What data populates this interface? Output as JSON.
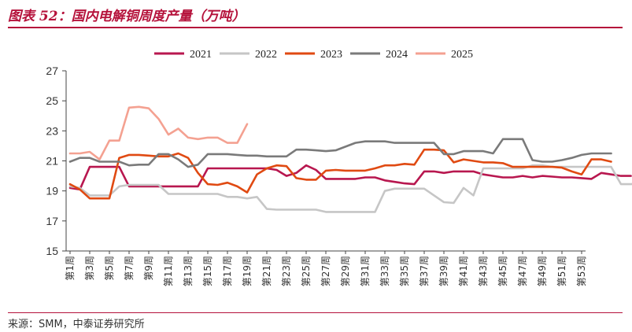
{
  "title": "图表 52：国内电解铜周度产量（万吨）",
  "source": "来源：SMM，中泰证券研究所",
  "chart_data": {
    "type": "line",
    "title": "图表 52：国内电解铜周度产量（万吨）",
    "xlabel": "",
    "ylabel": "",
    "ylim": [
      15,
      27
    ],
    "yticks": [
      15,
      17,
      19,
      21,
      23,
      25,
      27
    ],
    "xtick_labels": [
      "第1周",
      "第3周",
      "第5周",
      "第7周",
      "第9周",
      "第11周",
      "第13周",
      "第15周",
      "第17周",
      "第19周",
      "第21周",
      "第23周",
      "第25周",
      "第27周",
      "第29周",
      "第31周",
      "第33周",
      "第35周",
      "第37周",
      "第39周",
      "第41周",
      "第43周",
      "第45周",
      "第47周",
      "第49周",
      "第51周",
      "第53周"
    ],
    "grid": false,
    "legend_position": "top",
    "series": [
      {
        "name": "2021",
        "color": "#b8174f",
        "weeks_start": 1,
        "values": [
          19.2,
          19.1,
          20.6,
          20.6,
          20.6,
          20.6,
          19.3,
          19.3,
          19.3,
          19.3,
          19.3,
          19.3,
          19.3,
          19.3,
          20.5,
          20.5,
          20.5,
          20.5,
          20.5,
          20.5,
          20.5,
          20.4,
          20.0,
          20.2,
          20.7,
          20.4,
          19.8,
          19.8,
          19.8,
          19.8,
          19.9,
          19.9,
          19.7,
          19.6,
          19.5,
          19.45,
          20.3,
          20.3,
          20.2,
          20.3,
          20.3,
          20.3,
          20.1,
          20.0,
          19.9,
          19.9,
          20.0,
          19.9,
          20.0,
          19.95,
          19.9,
          19.9,
          19.85,
          19.8,
          20.2,
          20.1,
          20.0,
          20.0
        ]
      },
      {
        "name": "2022",
        "color": "#c6c6c6",
        "weeks_start": 1,
        "values": [
          19.3,
          19.2,
          18.7,
          18.7,
          18.7,
          19.3,
          19.4,
          19.4,
          19.4,
          19.4,
          18.8,
          18.8,
          18.8,
          18.8,
          18.8,
          18.8,
          18.6,
          18.6,
          18.5,
          18.6,
          17.8,
          17.75,
          17.75,
          17.75,
          17.75,
          17.75,
          17.6,
          17.6,
          17.6,
          17.6,
          17.6,
          17.6,
          19.0,
          19.15,
          19.15,
          19.15,
          19.15,
          18.7,
          18.25,
          18.2,
          19.2,
          18.7,
          20.5,
          20.5,
          20.5,
          20.5,
          20.5,
          20.7,
          20.7,
          20.6,
          20.6,
          20.6,
          20.6,
          20.6,
          20.6,
          20.6,
          19.45,
          19.45,
          19.5,
          19.6,
          19.85,
          19.0,
          19.35,
          19.35
        ]
      },
      {
        "name": "2023",
        "color": "#e04a12",
        "weeks_start": 1,
        "values": [
          19.45,
          19.1,
          18.5,
          18.5,
          18.5,
          21.2,
          21.4,
          21.4,
          21.35,
          21.3,
          21.3,
          21.5,
          21.2,
          20.2,
          19.45,
          19.4,
          19.55,
          19.3,
          18.9,
          20.1,
          20.5,
          20.7,
          20.65,
          19.85,
          19.75,
          19.75,
          20.35,
          20.4,
          20.35,
          20.35,
          20.35,
          20.5,
          20.7,
          20.7,
          20.8,
          20.75,
          21.75,
          21.75,
          21.7,
          20.9,
          21.1,
          21.0,
          20.9,
          20.9,
          20.85,
          20.6,
          20.6,
          20.6,
          20.6,
          20.6,
          20.55,
          20.3,
          20.1,
          21.1,
          21.1,
          20.95
        ]
      },
      {
        "name": "2024",
        "color": "#7a7a7a",
        "weeks_start": 1,
        "values": [
          20.95,
          21.2,
          21.2,
          20.95,
          20.95,
          20.95,
          20.7,
          20.75,
          20.75,
          21.45,
          21.45,
          21.1,
          20.6,
          20.75,
          21.45,
          21.45,
          21.45,
          21.4,
          21.35,
          21.35,
          21.3,
          21.3,
          21.3,
          21.75,
          21.75,
          21.7,
          21.65,
          21.7,
          21.95,
          22.2,
          22.3,
          22.3,
          22.3,
          22.2,
          22.2,
          22.2,
          22.2,
          22.2,
          21.45,
          21.45,
          21.65,
          21.65,
          21.65,
          21.5,
          22.45,
          22.45,
          22.45,
          21.05,
          20.95,
          20.95,
          21.05,
          21.2,
          21.4,
          21.5,
          21.5,
          21.5
        ]
      },
      {
        "name": "2025",
        "color": "#f4a191",
        "weeks_start": 1,
        "values": [
          21.5,
          21.5,
          21.6,
          21.1,
          22.35,
          22.35,
          24.55,
          24.6,
          24.5,
          23.8,
          22.75,
          23.15,
          22.55,
          22.45,
          22.55,
          22.55,
          22.2,
          22.2,
          23.45
        ]
      }
    ]
  }
}
